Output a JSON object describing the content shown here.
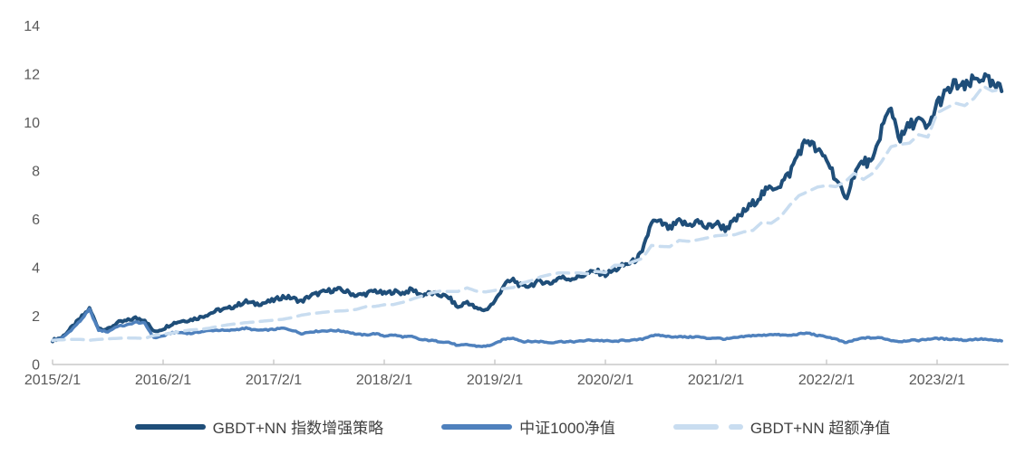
{
  "chart_data": {
    "type": "line",
    "title": "",
    "xlabel": "",
    "ylabel": "",
    "ylim": [
      0,
      14
    ],
    "y_ticks": [
      0,
      2,
      4,
      6,
      8,
      10,
      12,
      14
    ],
    "x_tick_labels": [
      "2015/2/1",
      "2016/2/1",
      "2017/2/1",
      "2018/2/1",
      "2019/2/1",
      "2020/2/1",
      "2021/2/1",
      "2022/2/1",
      "2023/2/1"
    ],
    "x_unit": "month",
    "x_start": "2015/2",
    "x_end": "2023/9",
    "months_per_tick": 12,
    "grid": false,
    "legend_position": "bottom",
    "axis_color": "#c8c8c8",
    "label_color": "#595959",
    "series": [
      {
        "name": "GBDT+NN 指数增强策略",
        "color": "#1f4e79",
        "style": "solid",
        "values": [
          1.0,
          1.12,
          1.5,
          1.9,
          2.3,
          1.5,
          1.45,
          1.72,
          1.8,
          1.92,
          1.85,
          1.35,
          1.48,
          1.7,
          1.8,
          1.85,
          1.95,
          2.1,
          2.25,
          2.3,
          2.45,
          2.6,
          2.5,
          2.55,
          2.65,
          2.8,
          2.75,
          2.6,
          2.85,
          2.95,
          3.05,
          3.1,
          3.0,
          2.85,
          2.92,
          3.05,
          2.92,
          3.02,
          2.95,
          3.1,
          2.88,
          2.95,
          2.88,
          2.78,
          2.35,
          2.6,
          2.3,
          2.25,
          2.6,
          3.3,
          3.5,
          3.2,
          3.3,
          3.45,
          3.35,
          3.6,
          3.55,
          3.6,
          3.75,
          3.85,
          3.72,
          3.9,
          4.1,
          4.25,
          4.6,
          5.9,
          5.85,
          5.6,
          5.9,
          5.75,
          5.92,
          5.65,
          5.85,
          5.62,
          5.9,
          6.3,
          6.65,
          7.05,
          7.3,
          7.45,
          7.9,
          8.8,
          9.3,
          8.8,
          8.5,
          7.7,
          6.8,
          7.9,
          8.4,
          8.3,
          9.8,
          10.6,
          9.3,
          9.9,
          10.1,
          9.7,
          10.8,
          11.2,
          11.6,
          11.4,
          11.75,
          11.9,
          11.5,
          11.35
        ]
      },
      {
        "name": "中证1000净值",
        "color": "#4f81bd",
        "style": "solid",
        "values": [
          1.0,
          1.08,
          1.42,
          1.8,
          2.28,
          1.42,
          1.35,
          1.58,
          1.62,
          1.75,
          1.7,
          1.1,
          1.18,
          1.32,
          1.32,
          1.28,
          1.35,
          1.4,
          1.42,
          1.4,
          1.45,
          1.5,
          1.42,
          1.42,
          1.45,
          1.5,
          1.42,
          1.28,
          1.35,
          1.38,
          1.4,
          1.4,
          1.35,
          1.25,
          1.22,
          1.28,
          1.18,
          1.22,
          1.15,
          1.15,
          1.02,
          1.0,
          0.95,
          0.92,
          0.78,
          0.82,
          0.76,
          0.75,
          0.85,
          1.05,
          1.1,
          0.95,
          0.95,
          0.95,
          0.9,
          0.95,
          0.94,
          0.95,
          1.0,
          1.0,
          0.98,
          0.95,
          1.0,
          1.0,
          1.05,
          1.2,
          1.2,
          1.15,
          1.15,
          1.13,
          1.15,
          1.08,
          1.1,
          1.05,
          1.1,
          1.15,
          1.2,
          1.2,
          1.25,
          1.22,
          1.2,
          1.26,
          1.3,
          1.2,
          1.15,
          1.05,
          0.9,
          1.0,
          1.1,
          1.1,
          1.1,
          1.0,
          0.95,
          1.0,
          1.0,
          1.05,
          1.08,
          1.05,
          1.05,
          1.0,
          1.04,
          1.05,
          1.0,
          0.98
        ]
      },
      {
        "name": "GBDT+NN 超额净值",
        "color": "#c9ddf0",
        "style": "dashed",
        "values": [
          1.0,
          1.02,
          1.04,
          1.04,
          1.0,
          1.04,
          1.06,
          1.08,
          1.1,
          1.09,
          1.08,
          1.2,
          1.25,
          1.3,
          1.38,
          1.43,
          1.45,
          1.5,
          1.58,
          1.64,
          1.69,
          1.73,
          1.76,
          1.8,
          1.83,
          1.87,
          1.94,
          2.04,
          2.1,
          2.14,
          2.18,
          2.21,
          2.23,
          2.28,
          2.39,
          2.4,
          2.47,
          2.48,
          2.57,
          2.7,
          2.82,
          2.95,
          3.03,
          3.02,
          3.02,
          3.17,
          3.03,
          3.0,
          3.06,
          3.14,
          3.18,
          3.37,
          3.47,
          3.63,
          3.72,
          3.79,
          3.78,
          3.79,
          3.75,
          3.85,
          3.8,
          4.1,
          4.1,
          4.25,
          4.38,
          4.92,
          4.88,
          4.87,
          5.13,
          5.09,
          5.15,
          5.23,
          5.32,
          5.35,
          5.36,
          5.48,
          5.54,
          5.88,
          5.84,
          6.1,
          6.58,
          6.98,
          7.15,
          7.33,
          7.4,
          7.35,
          7.55,
          7.9,
          7.65,
          7.9,
          8.4,
          9.0,
          9.1,
          9.15,
          9.5,
          9.4,
          10.4,
          10.6,
          10.8,
          10.7,
          11.0,
          11.5,
          11.3,
          11.38
        ]
      }
    ]
  }
}
